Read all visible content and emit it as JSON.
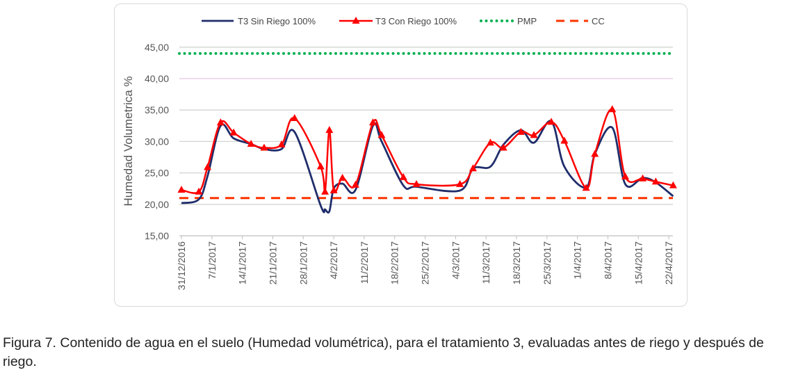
{
  "chart_data": {
    "type": "line",
    "title": "",
    "xlabel": "",
    "ylabel": "Humedad Volumetrica  %",
    "ylim": [
      15,
      45
    ],
    "yticks": [
      "15,00",
      "20,00",
      "25,00",
      "30,00",
      "35,00",
      "40,00",
      "45,00"
    ],
    "xtick_labels": [
      "31/12/2016",
      "7/1/2017",
      "14/1/2017",
      "21/1/2017",
      "28/1/2017",
      "4/2/2017",
      "11/2/2017",
      "18/2/2017",
      "25/2/2017",
      "4/3/2017",
      "11/3/2017",
      "18/3/2017",
      "25/3/2017",
      "1/4/2017",
      "8/4/2017",
      "15/4/2017",
      "22/4/2017"
    ],
    "x_days_since_31_12_2016": [
      0,
      4,
      6,
      9,
      12,
      16,
      19,
      23,
      26,
      32,
      33,
      34,
      35,
      37,
      40,
      44,
      46,
      51,
      54,
      64,
      67,
      71,
      74,
      78,
      81,
      85,
      88,
      93,
      95,
      99,
      102,
      106,
      109,
      113
    ],
    "series": [
      {
        "name": "T3 Sin Riego 100%",
        "color": "#1f2d6b",
        "values": [
          20.2,
          20.8,
          24.5,
          32.5,
          30.5,
          29.6,
          28.8,
          28.8,
          31.5,
          19.8,
          19.2,
          18.9,
          22.5,
          23.3,
          22.3,
          32.5,
          30.0,
          23.0,
          22.8,
          22.2,
          25.7,
          26.0,
          29.5,
          31.8,
          29.8,
          33.2,
          26.0,
          22.7,
          28.0,
          32.2,
          23.2,
          24.2,
          23.5,
          21.3
        ]
      },
      {
        "name": "T3 Con Riego 100%",
        "color": "#ff0000",
        "values": [
          22.3,
          22.0,
          25.9,
          33.0,
          31.4,
          29.6,
          29.0,
          29.5,
          33.7,
          26.0,
          22.0,
          31.8,
          22.2,
          24.2,
          23.1,
          33.0,
          31.0,
          24.3,
          23.2,
          23.2,
          25.7,
          29.8,
          29.0,
          31.5,
          31.0,
          33.1,
          30.1,
          22.6,
          28.0,
          35.1,
          24.4,
          24.1,
          23.6,
          23.0
        ]
      },
      {
        "name": "PMP",
        "color": "#00b050",
        "constant": 44.0
      },
      {
        "name": "CC",
        "color": "#ff3300",
        "constant": 21.0
      }
    ],
    "legend_position": "top",
    "grid": "horizontal"
  },
  "caption": "Figura 7. Contenido de agua en el suelo (Humedad volumétrica), para el tratamiento 3, evaluadas antes de riego y después de riego."
}
